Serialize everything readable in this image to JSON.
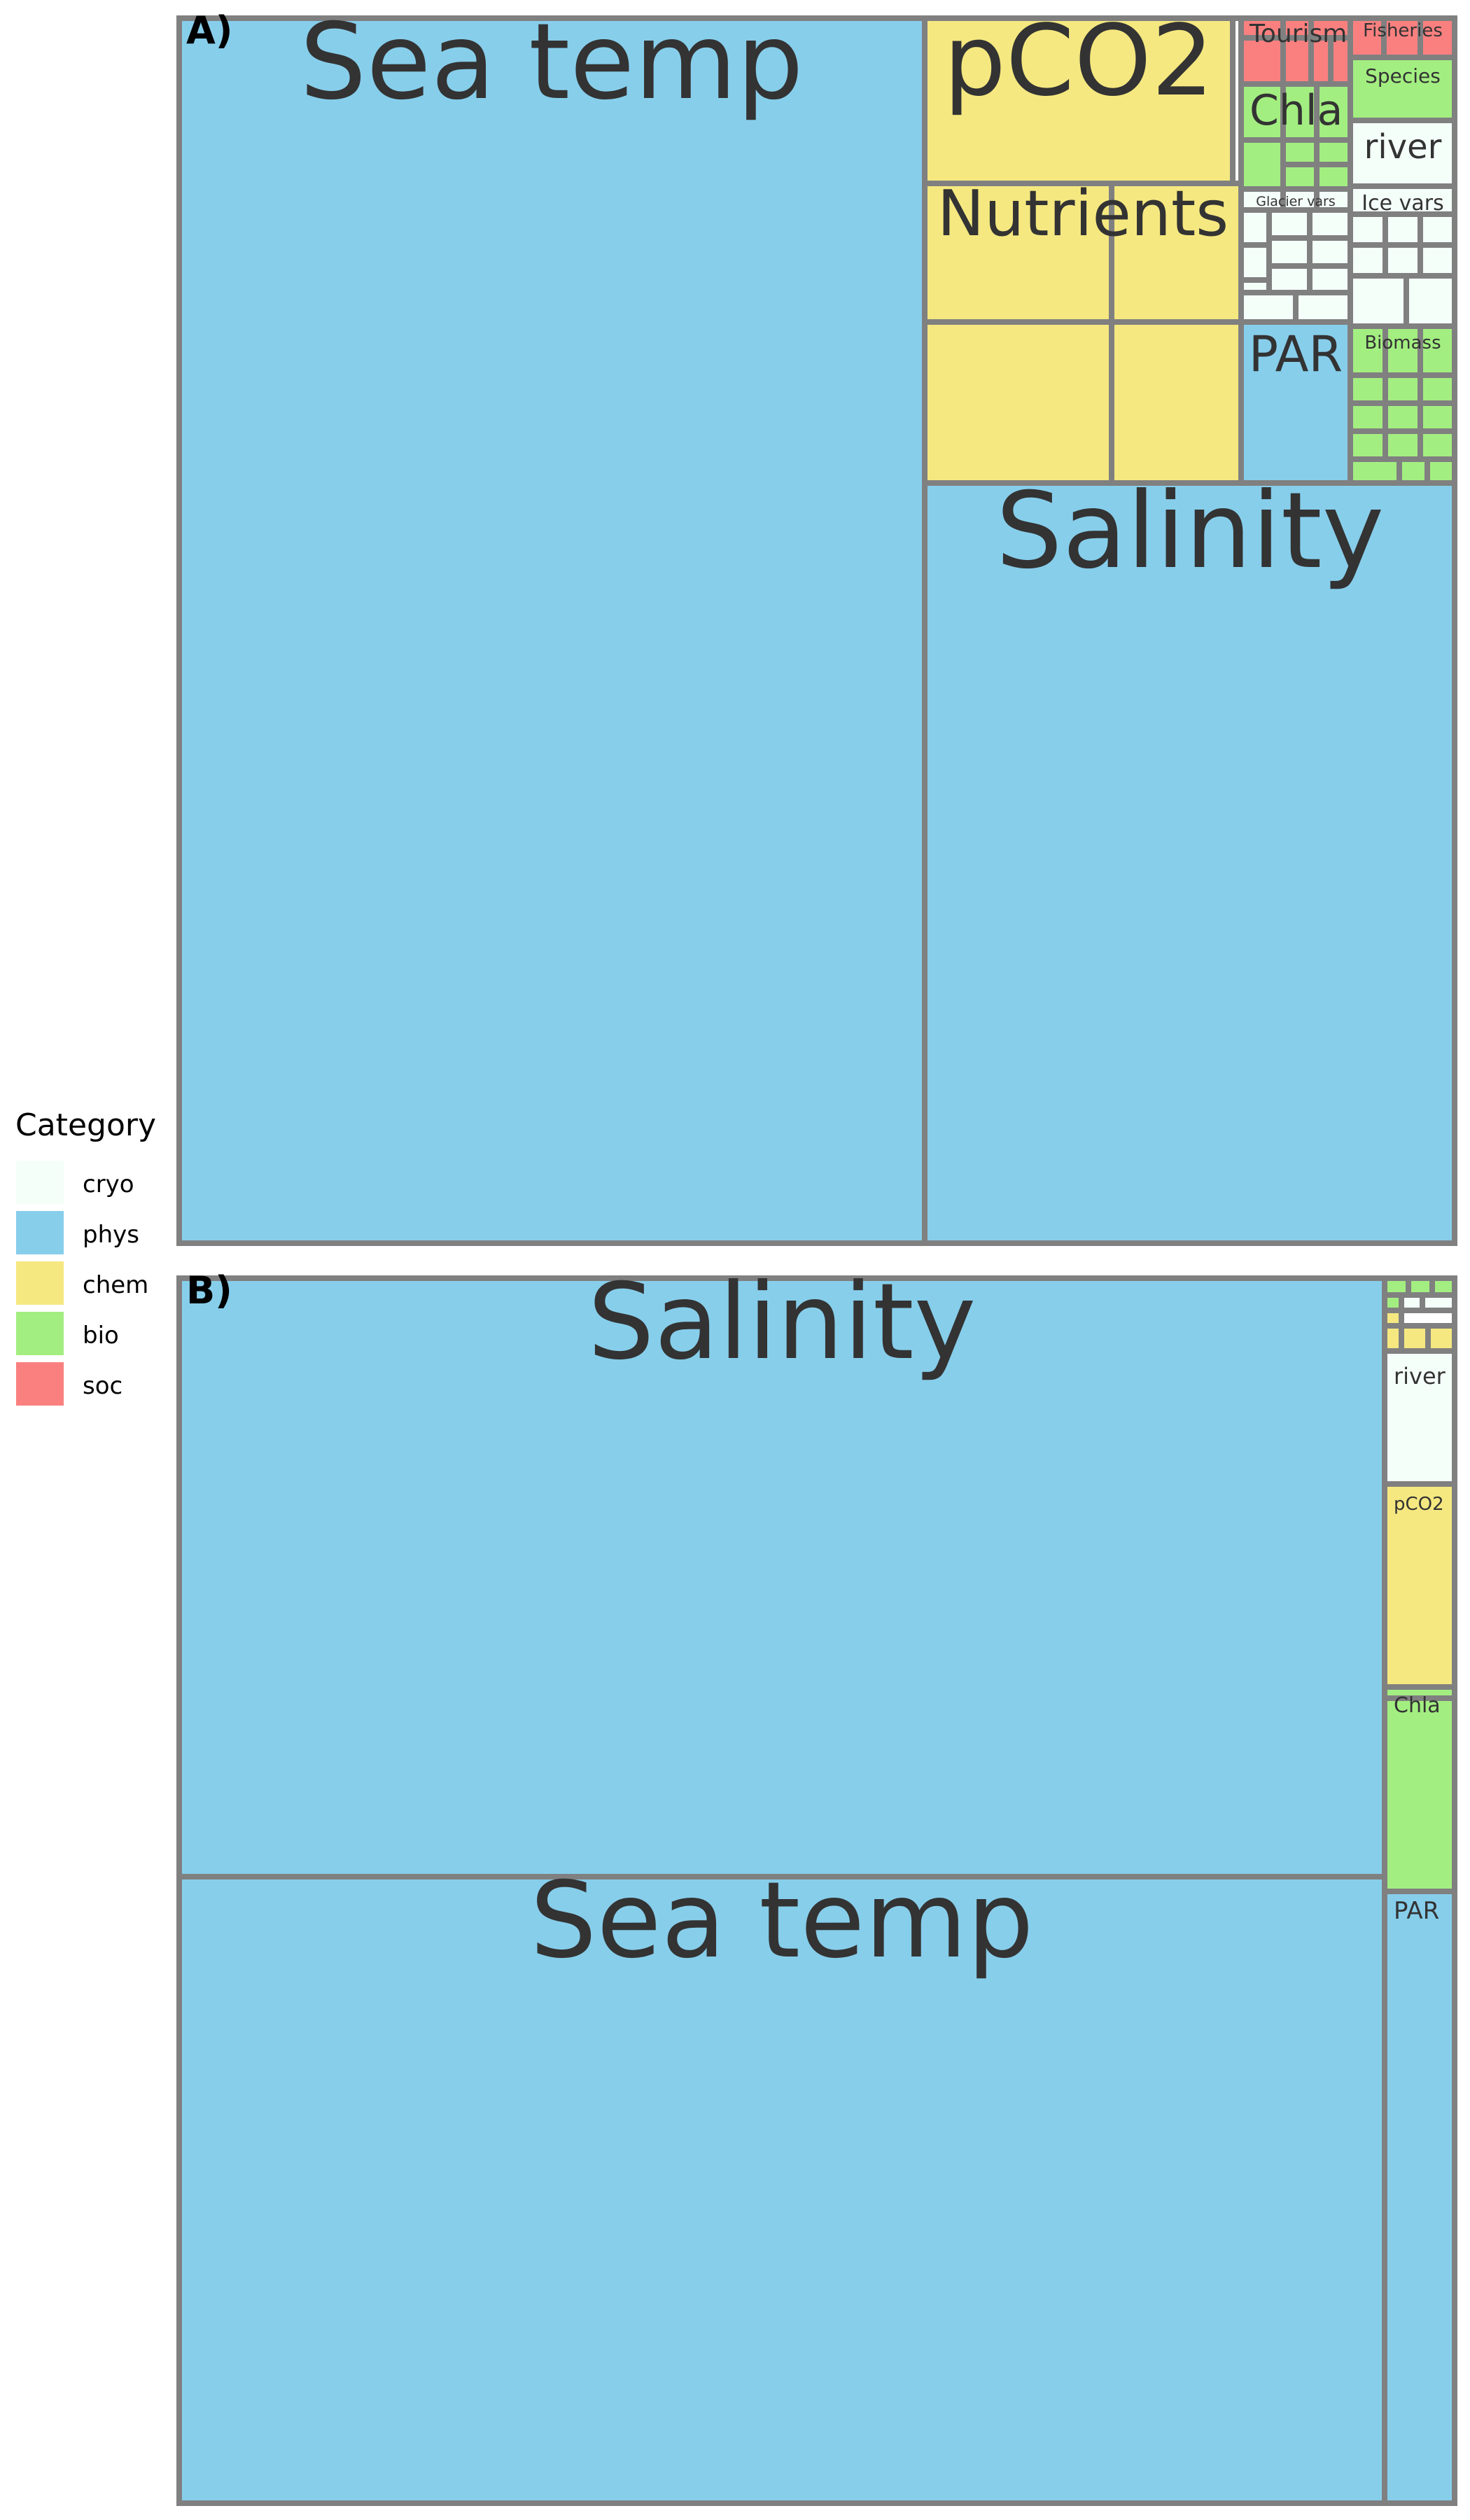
{
  "chart_data": [
    {
      "type": "treemap",
      "panel_label": "A)",
      "fill_by": "category",
      "labels": [
        "Sea temp",
        "Salinity",
        "pCO2",
        "Nutrients",
        "PAR",
        "Tourism",
        "Fisheries",
        "Chla",
        "Species",
        "river",
        "Glacier vars",
        "Ice vars",
        "Biomass"
      ],
      "categories_of_labels": [
        "phys",
        "phys",
        "chem",
        "chem",
        "phys",
        "soc",
        "soc",
        "bio",
        "bio",
        "cryo",
        "cryo",
        "cryo",
        "bio"
      ]
    },
    {
      "type": "treemap",
      "panel_label": "B)",
      "fill_by": "category",
      "labels": [
        "Salinity",
        "Sea temp",
        "river",
        "pCO2",
        "Chla",
        "PAR"
      ],
      "categories_of_labels": [
        "phys",
        "phys",
        "cryo",
        "chem",
        "bio",
        "phys"
      ]
    }
  ],
  "legend": {
    "title": "Category",
    "position": "left",
    "items": [
      {
        "label": "cryo",
        "color": "#F5FFFA"
      },
      {
        "label": "phys",
        "color": "#87CEEB"
      },
      {
        "label": "chem",
        "color": "#F5E880"
      },
      {
        "label": "bio",
        "color": "#A3EE81"
      },
      {
        "label": "soc",
        "color": "#FA8080"
      }
    ]
  },
  "colors": {
    "border": "#808080",
    "label_text": "#333333"
  }
}
